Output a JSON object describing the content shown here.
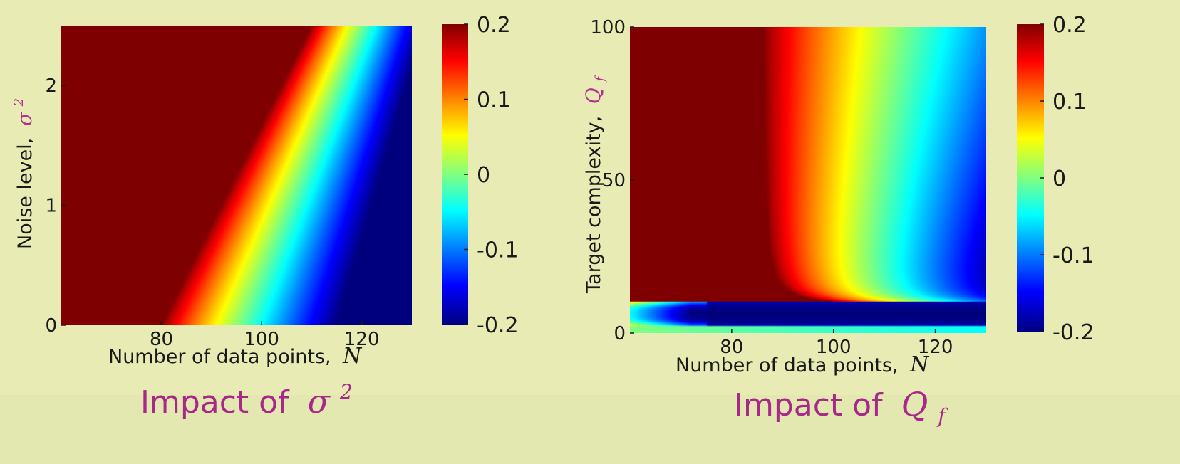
{
  "chart_data": [
    {
      "type": "heatmap",
      "title": "",
      "caption": "Impact of",
      "caption_symbol": "σ",
      "caption_superscript": "2",
      "xlabel": "Number of data points,",
      "xlabel_symbol": "N",
      "ylabel": "Noise level,",
      "ylabel_symbol": "σ",
      "ylabel_superscript": "2",
      "xlim": [
        60,
        130
      ],
      "ylim": [
        0,
        2.5
      ],
      "xticks": [
        80,
        100,
        120
      ],
      "xtick_labels": [
        "80",
        "100",
        "120"
      ],
      "yticks": [
        0,
        1,
        2
      ],
      "ytick_labels": [
        "0",
        "1",
        "2"
      ],
      "colorbar": {
        "range": [
          -0.2,
          0.2
        ],
        "ticks": [
          0.2,
          0.1,
          0,
          -0.1,
          -0.2
        ],
        "tick_labels": [
          "0.2",
          "0.1",
          "0",
          "-0.1",
          "-0.2"
        ],
        "colormap": "jet"
      },
      "description_of_values": {
        "boundary_0_2": "N = 80 + 12*sigma2",
        "boundary_minus_0_2": "N = 110 + 8*sigma2",
        "saturated_region": "left of boundary: 0.2"
      }
    },
    {
      "type": "heatmap",
      "title": "",
      "caption": "Impact of",
      "caption_symbol": "Q",
      "caption_subscript": "f",
      "xlabel": "Number of data points,",
      "xlabel_symbol": "N",
      "ylabel": "Target complexity,",
      "ylabel_symbol": "Q",
      "ylabel_subscript": "f",
      "xlim": [
        60,
        130
      ],
      "ylim": [
        0,
        100
      ],
      "xticks": [
        80,
        100,
        120
      ],
      "xtick_labels": [
        "80",
        "100",
        "120"
      ],
      "yticks": [
        0,
        50,
        100
      ],
      "ytick_labels": [
        "0",
        "50",
        "100"
      ],
      "colorbar": {
        "range": [
          -0.2,
          0.2
        ],
        "ticks": [
          0.2,
          0.1,
          0,
          -0.1,
          -0.2
        ],
        "tick_labels": [
          "0.2",
          "0.1",
          "0",
          "-0.1",
          "-0.2"
        ],
        "colormap": "jet"
      },
      "description_of_values": {
        "saturated_region": "N < ~88 and Q_f > ~10: 0.2",
        "low_band": "Q_f ~ 2-10 dips to -0.2 across N",
        "fade": "value decreases with N toward -0.2"
      }
    }
  ]
}
